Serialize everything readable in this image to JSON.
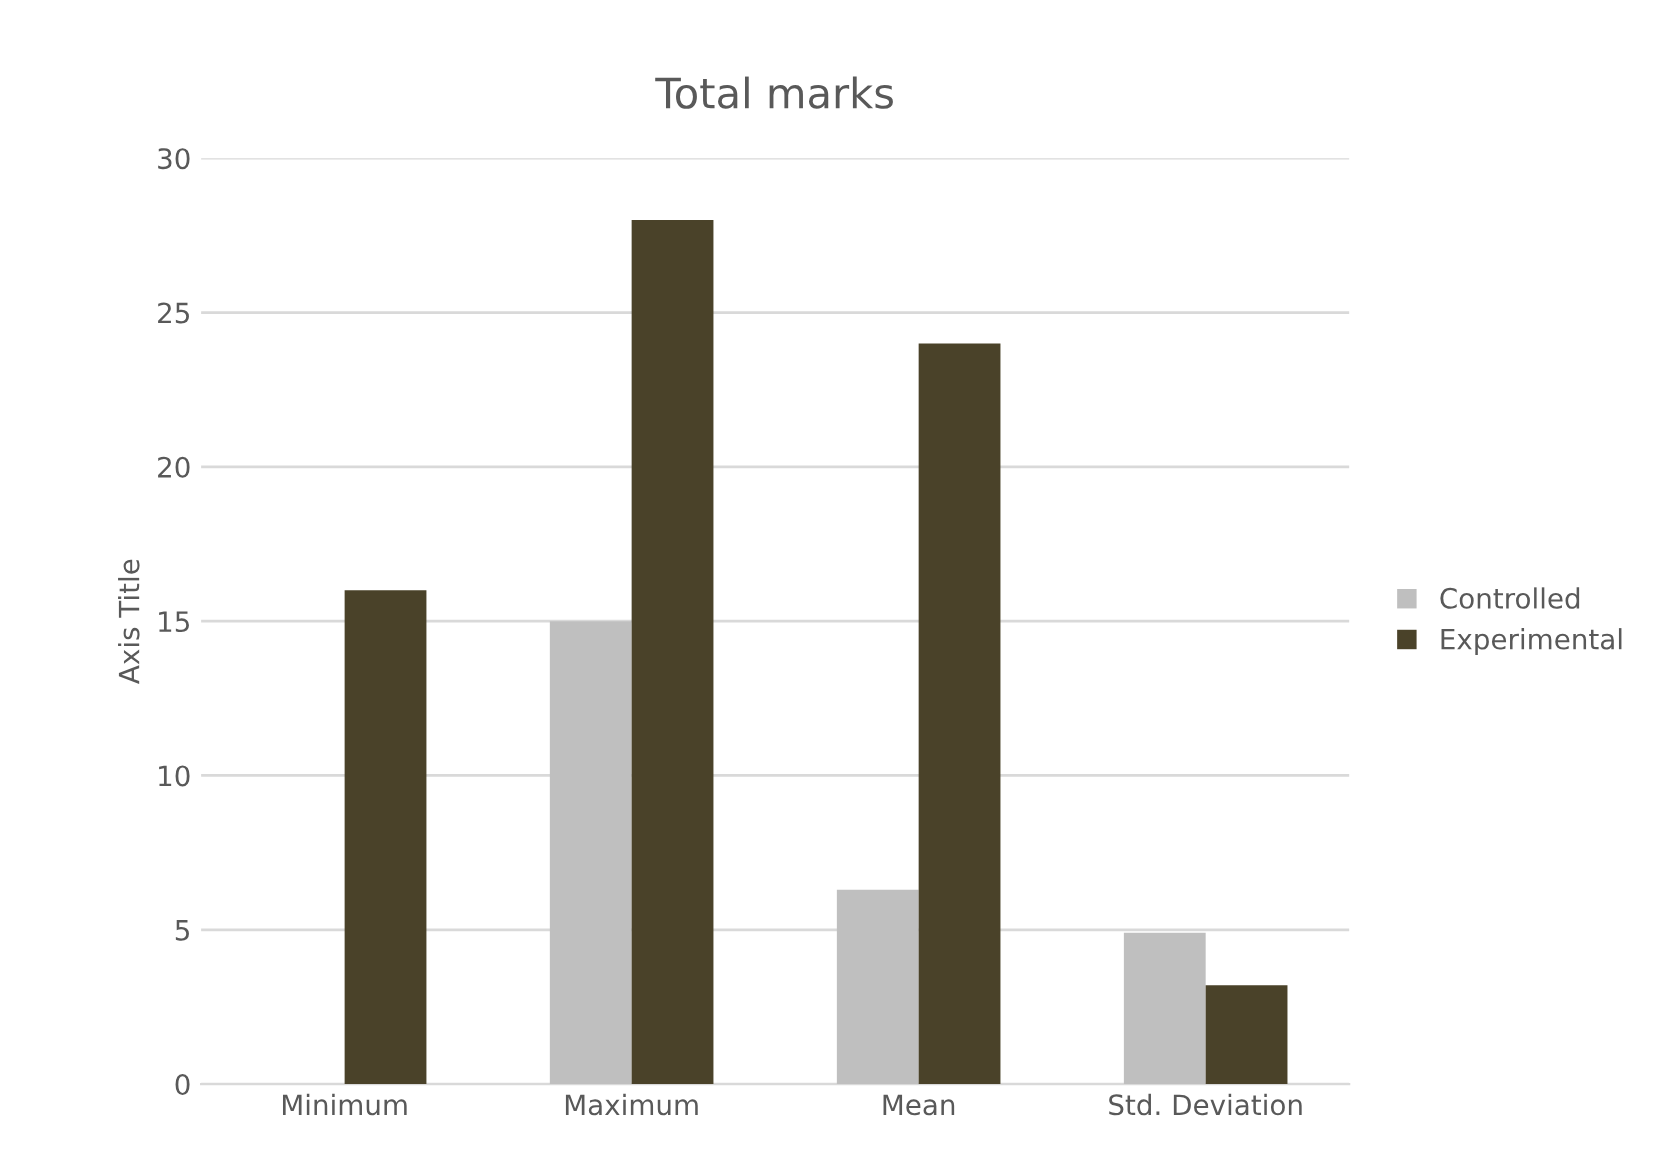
{
  "chart_data": {
    "type": "bar",
    "title": "Total marks",
    "ylabel": "Axis Title",
    "categories": [
      "Minimum",
      "Maximum",
      "Mean",
      "Std. Deviation"
    ],
    "series": [
      {
        "name": "Controlled",
        "color": "#bfbfbf",
        "values": [
          0,
          15,
          6.3,
          4.9
        ]
      },
      {
        "name": "Experimental",
        "color": "#4a4229",
        "values": [
          16,
          28,
          24,
          3.2
        ]
      }
    ],
    "ylim": [
      0,
      30
    ],
    "yticks": [
      0,
      5,
      10,
      15,
      20,
      25,
      30
    ],
    "grid": "y",
    "legend": "right"
  }
}
